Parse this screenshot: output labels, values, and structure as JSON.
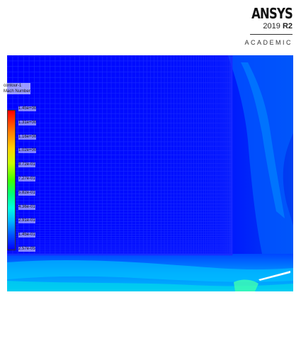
{
  "logo": {
    "brand": "ANSYS",
    "version_year": "2019",
    "version_release": "R2",
    "edition": "ACADEMIC"
  },
  "legend": {
    "title_line1": "contour-1",
    "title_line2": "Mach Number",
    "ticks": [
      "1.45e+00",
      "1.31e+00",
      "1.16e+00",
      "1.02e+00",
      "8.72e-01",
      "7.27e-01",
      "5.82e-01",
      "4.36e-01",
      "2.91e-01",
      "1.45e-01",
      "2.57e-05"
    ],
    "colormap": [
      "#ff0000",
      "#ff7a00",
      "#ffd000",
      "#c8ff00",
      "#41ff00",
      "#00ff76",
      "#00ffe0",
      "#00b4ff",
      "#0050ff",
      "#0000ff"
    ]
  }
}
